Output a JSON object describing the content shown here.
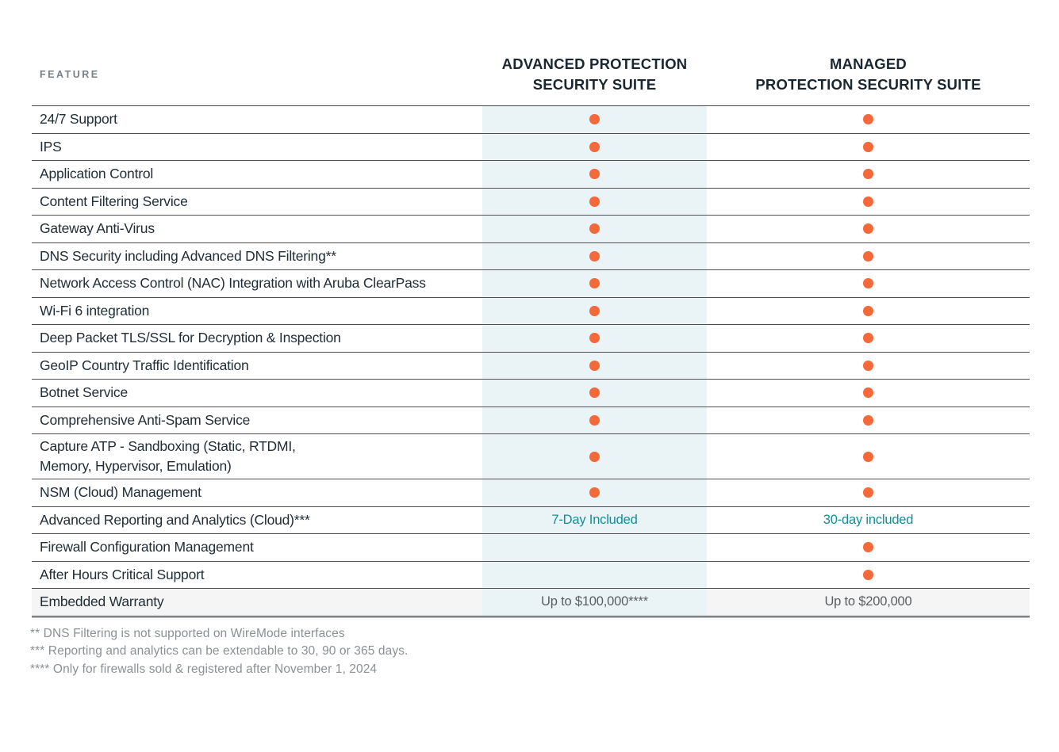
{
  "header": {
    "feature_label": "FEATURE",
    "columns": [
      {
        "title": "ADVANCED PROTECTION\nSECURITY SUITE"
      },
      {
        "title": "MANAGED\nPROTECTION SECURITY SUITE"
      }
    ]
  },
  "table": {
    "included_marker": "orange-dot",
    "rows": [
      {
        "feature": "24/7 Support",
        "adv": {
          "dot": true
        },
        "managed": {
          "dot": true
        }
      },
      {
        "feature": "IPS",
        "adv": {
          "dot": true
        },
        "managed": {
          "dot": true
        }
      },
      {
        "feature": "Application Control",
        "adv": {
          "dot": true
        },
        "managed": {
          "dot": true
        }
      },
      {
        "feature": "Content Filtering Service",
        "adv": {
          "dot": true
        },
        "managed": {
          "dot": true
        }
      },
      {
        "feature": "Gateway Anti-Virus",
        "adv": {
          "dot": true
        },
        "managed": {
          "dot": true
        }
      },
      {
        "feature": "DNS Security including Advanced DNS Filtering**",
        "adv": {
          "dot": true
        },
        "managed": {
          "dot": true
        }
      },
      {
        "feature": "Network Access Control (NAC) Integration with Aruba ClearPass",
        "adv": {
          "dot": true
        },
        "managed": {
          "dot": true
        }
      },
      {
        "feature": "Wi-Fi 6 integration",
        "adv": {
          "dot": true
        },
        "managed": {
          "dot": true
        }
      },
      {
        "feature": "Deep Packet TLS/SSL for Decryption & Inspection",
        "adv": {
          "dot": true
        },
        "managed": {
          "dot": true
        }
      },
      {
        "feature": "GeoIP Country Traffic Identification",
        "adv": {
          "dot": true
        },
        "managed": {
          "dot": true
        }
      },
      {
        "feature": "Botnet Service",
        "adv": {
          "dot": true
        },
        "managed": {
          "dot": true
        }
      },
      {
        "feature": "Comprehensive Anti-Spam Service",
        "adv": {
          "dot": true
        },
        "managed": {
          "dot": true
        }
      },
      {
        "feature": "Capture ATP - Sandboxing (Static, RTDMI,\nMemory, Hypervisor, Emulation)",
        "tall": true,
        "adv": {
          "dot": true
        },
        "managed": {
          "dot": true
        }
      },
      {
        "feature": "NSM (Cloud) Management",
        "adv": {
          "dot": true
        },
        "managed": {
          "dot": true
        }
      },
      {
        "feature": "Advanced Reporting and Analytics (Cloud)***",
        "adv": {
          "text": "7-Day Included",
          "style": "teal"
        },
        "managed": {
          "text": "30-day included",
          "style": "teal"
        }
      },
      {
        "feature": "Firewall Configuration Management",
        "adv": {},
        "managed": {
          "dot": true
        }
      },
      {
        "feature": "After Hours Critical Support",
        "adv": {},
        "managed": {
          "dot": true
        }
      },
      {
        "feature": "Embedded Warranty",
        "shaded": true,
        "adv": {
          "text": "Up to $100,000****",
          "style": "gray"
        },
        "managed": {
          "text": "Up to $200,000",
          "style": "gray"
        }
      }
    ]
  },
  "footnotes": [
    "** DNS Filtering is not supported on WireMode interfaces",
    "*** Reporting and analytics can be extendable to 30, 90 or 365 days.",
    "**** Only for firewalls sold & registered after November 1, 2024"
  ],
  "colors": {
    "included_dot": "#F4683A",
    "advanced_column_highlight": "#EAF4F7",
    "teal_value_text": "#0F8F9A",
    "warranty_row_background": "#F5F5F6",
    "heading_text": "#1B2730",
    "feature_text": "#212E36",
    "footnote_text": "#8B9095"
  }
}
